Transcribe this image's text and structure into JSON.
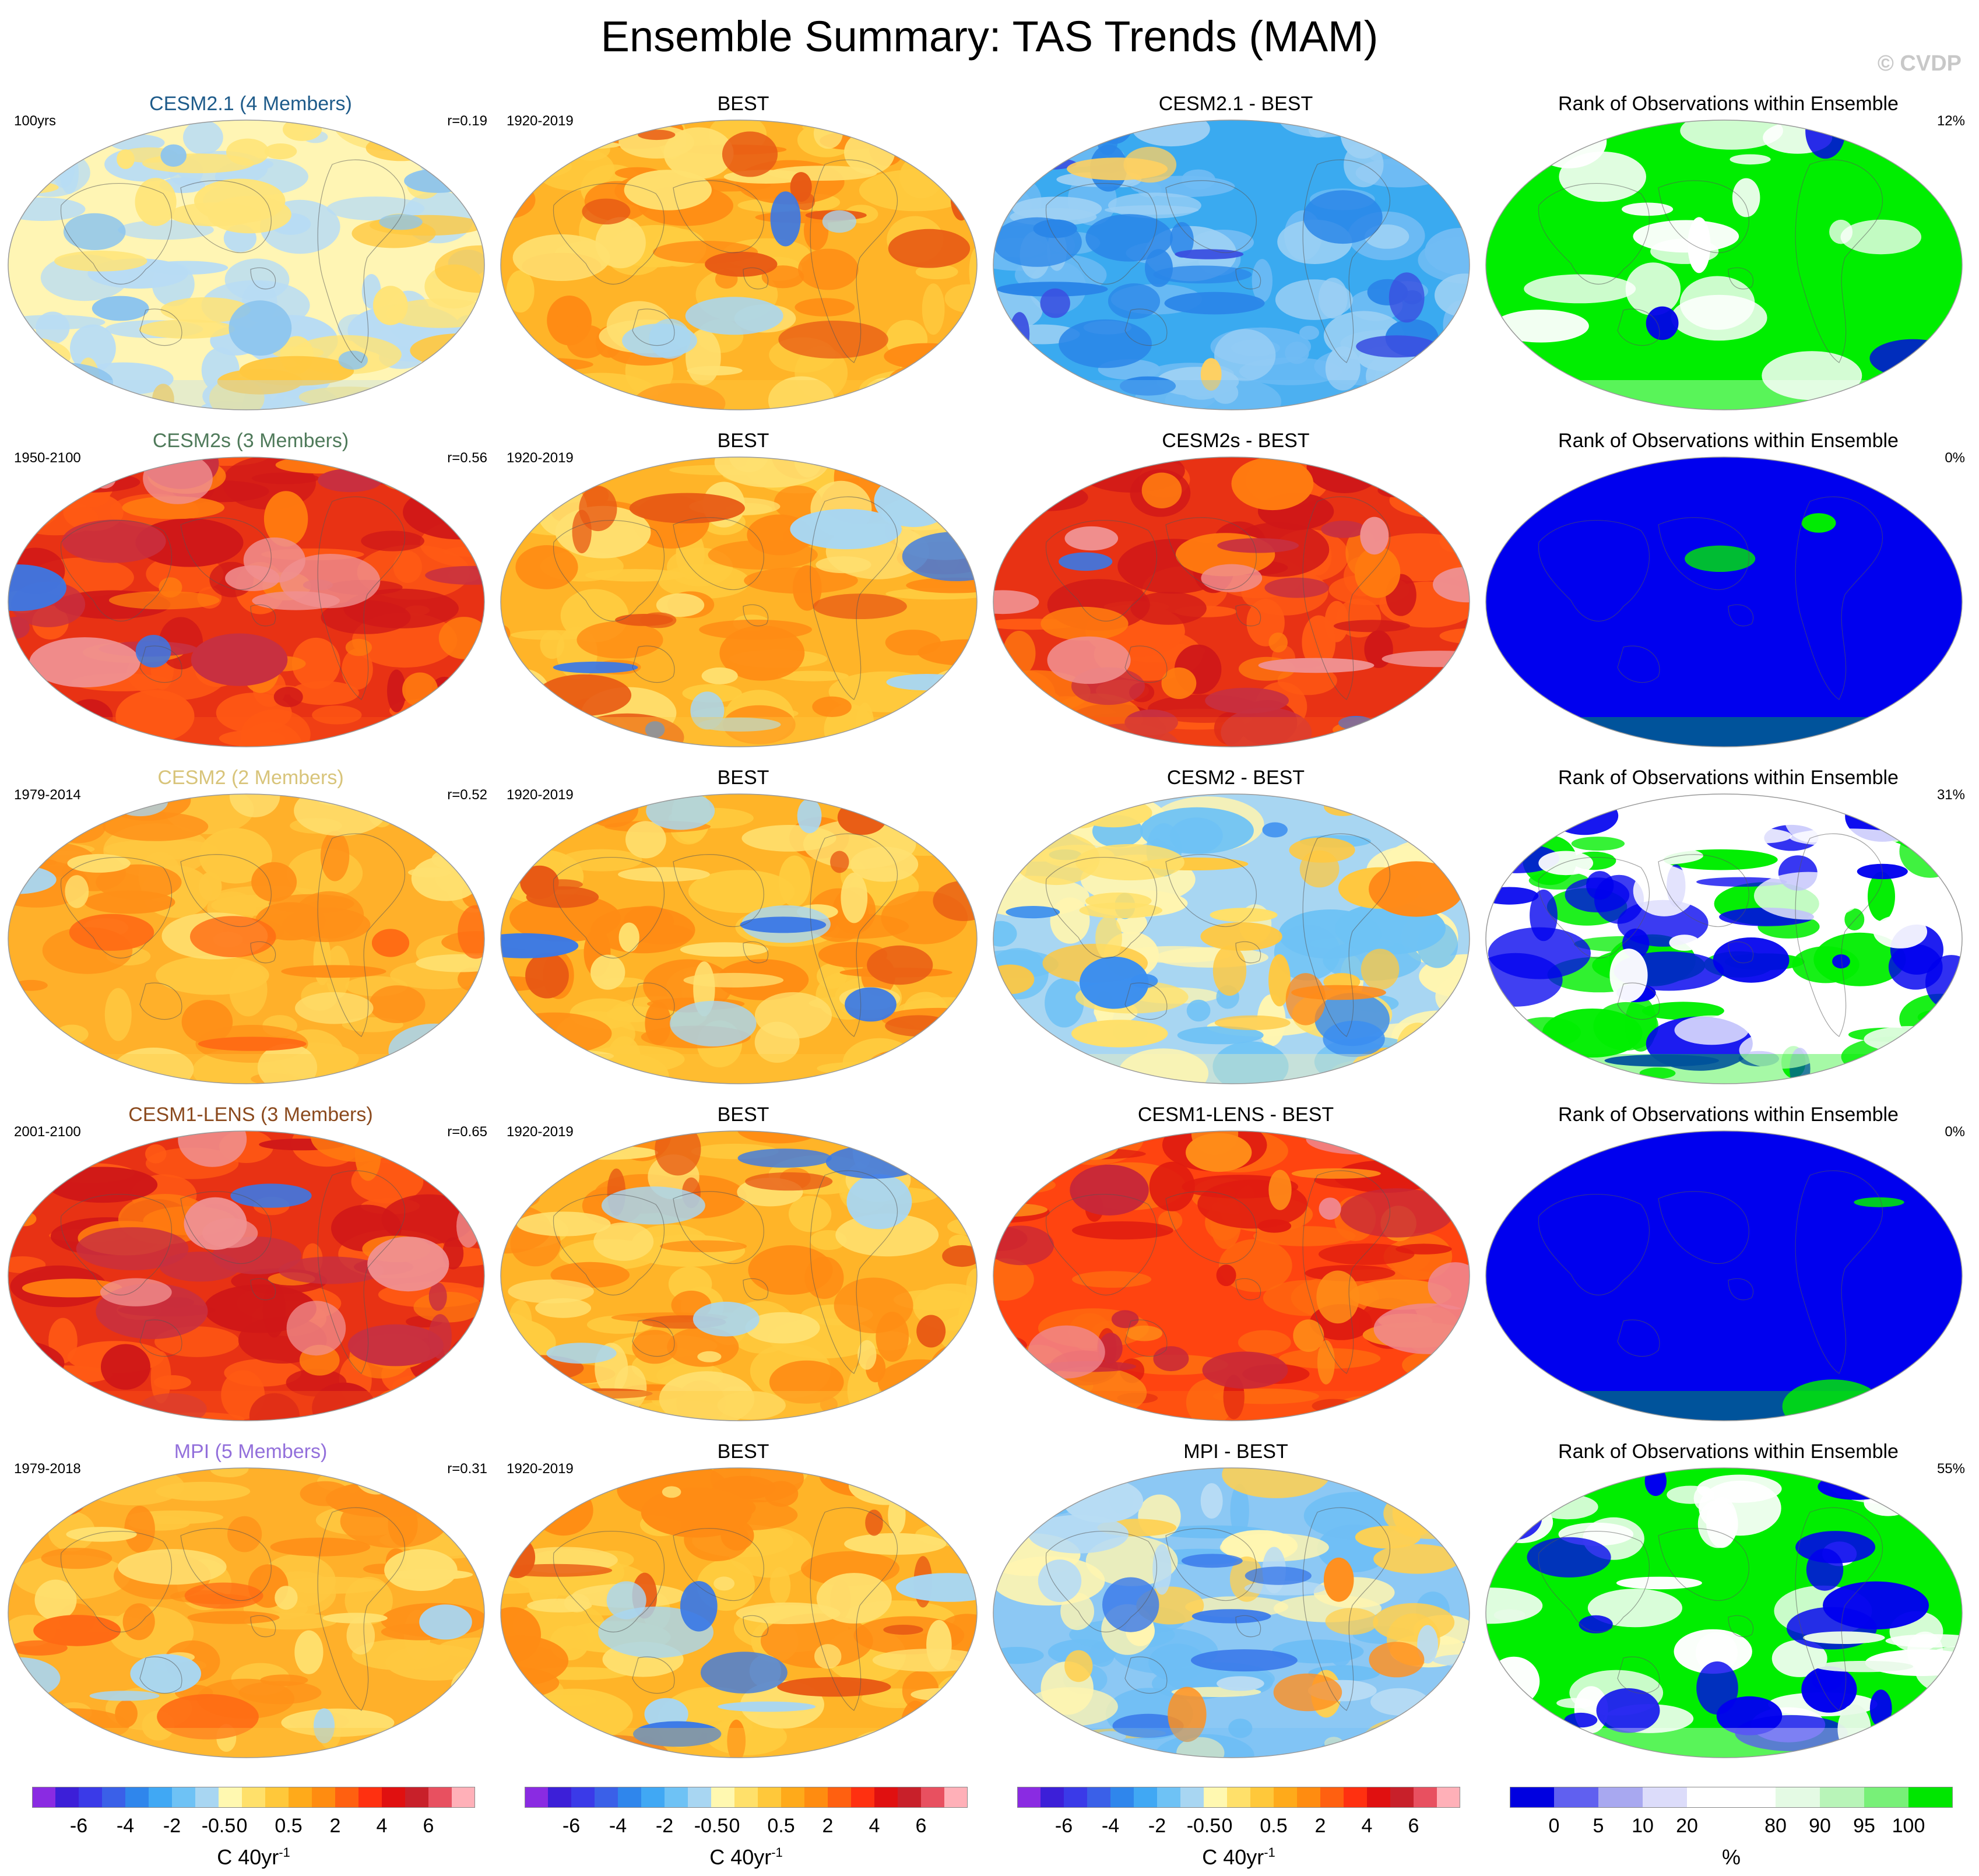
{
  "title": "Ensemble Summary: TAS Trends (MAM)",
  "watermark": "© CVDP",
  "rows": [
    {
      "model": {
        "title": "CESM2.1 (4 Members)",
        "title_color": "#1e5b8a",
        "left": "100yrs",
        "right": "r=0.19",
        "pattern": "mild"
      },
      "obs": {
        "title": "BEST",
        "left": "1920-2019",
        "pattern": "obs"
      },
      "diff": {
        "title": "CESM2.1 - BEST",
        "pattern": "cold"
      },
      "rank": {
        "title": "Rank of Observations within Ensemble",
        "right": "12%",
        "pattern": "rank_green"
      }
    },
    {
      "model": {
        "title": "CESM2s (3 Members)",
        "title_color": "#4f7a5a",
        "left": "1950-2100",
        "right": "r=0.56",
        "pattern": "hot"
      },
      "obs": {
        "title": "BEST",
        "left": "1920-2019",
        "pattern": "obs"
      },
      "diff": {
        "title": "CESM2s - BEST",
        "pattern": "hot"
      },
      "rank": {
        "title": "Rank of Observations within Ensemble",
        "right": "0%",
        "pattern": "rank_blue"
      }
    },
    {
      "model": {
        "title": "CESM2 (2 Members)",
        "title_color": "#d8c47a",
        "left": "1979-2014",
        "right": "r=0.52",
        "pattern": "warm"
      },
      "obs": {
        "title": "BEST",
        "left": "1920-2019",
        "pattern": "obs"
      },
      "diff": {
        "title": "CESM2 - BEST",
        "pattern": "mixed"
      },
      "rank": {
        "title": "Rank of Observations within Ensemble",
        "right": "31%",
        "pattern": "rank_mixed"
      }
    },
    {
      "model": {
        "title": "CESM1-LENS (3 Members)",
        "title_color": "#8b4a1e",
        "left": "2001-2100",
        "right": "r=0.65",
        "pattern": "hot"
      },
      "obs": {
        "title": "BEST",
        "left": "1920-2019",
        "pattern": "obs"
      },
      "diff": {
        "title": "CESM1-LENS - BEST",
        "pattern": "hot2"
      },
      "rank": {
        "title": "Rank of Observations within Ensemble",
        "right": "0%",
        "pattern": "rank_blue"
      }
    },
    {
      "model": {
        "title": "MPI (5 Members)",
        "title_color": "#9370db",
        "left": "1979-2018",
        "right": "r=0.31",
        "pattern": "warm"
      },
      "obs": {
        "title": "BEST",
        "left": "1920-2019",
        "pattern": "obs"
      },
      "diff": {
        "title": "MPI - BEST",
        "pattern": "mixed2"
      },
      "rank": {
        "title": "Rank of Observations within Ensemble",
        "right": "55%",
        "pattern": "rank_mixed2"
      }
    }
  ],
  "colorbars": [
    {
      "labels": [
        "-6",
        "-4",
        "-2",
        "-0.5",
        "0",
        "0.5",
        "2",
        "4",
        "6"
      ],
      "unit": "C 40yr",
      "unit_sup": "-1",
      "colors": [
        "#8a2be2",
        "#3c1fd8",
        "#3a3ae8",
        "#3a60e8",
        "#2f86ec",
        "#40a8f4",
        "#6ec2f5",
        "#a8d6f2",
        "#fff8b0",
        "#ffe06a",
        "#ffc83a",
        "#ffaa1a",
        "#ff8c10",
        "#ff6010",
        "#ff3010",
        "#e01010",
        "#c8202a",
        "#e85060",
        "#ffb0b8"
      ]
    },
    {
      "labels": [
        "-6",
        "-4",
        "-2",
        "-0.5",
        "0",
        "0.5",
        "2",
        "4",
        "6"
      ],
      "unit": "C 40yr",
      "unit_sup": "-1",
      "colors": [
        "#8a2be2",
        "#3c1fd8",
        "#3a3ae8",
        "#3a60e8",
        "#2f86ec",
        "#40a8f4",
        "#6ec2f5",
        "#a8d6f2",
        "#fff8b0",
        "#ffe06a",
        "#ffc83a",
        "#ffaa1a",
        "#ff8c10",
        "#ff6010",
        "#ff3010",
        "#e01010",
        "#c8202a",
        "#e85060",
        "#ffb0b8"
      ]
    },
    {
      "labels": [
        "-6",
        "-4",
        "-2",
        "-0.5",
        "0",
        "0.5",
        "2",
        "4",
        "6"
      ],
      "unit": "C 40yr",
      "unit_sup": "-1",
      "colors": [
        "#8a2be2",
        "#3c1fd8",
        "#3a3ae8",
        "#3a60e8",
        "#2f86ec",
        "#40a8f4",
        "#6ec2f5",
        "#a8d6f2",
        "#fff8b0",
        "#ffe06a",
        "#ffc83a",
        "#ffaa1a",
        "#ff8c10",
        "#ff6010",
        "#ff3010",
        "#e01010",
        "#c8202a",
        "#e85060",
        "#ffb0b8"
      ]
    },
    {
      "labels": [
        "0",
        "5",
        "10",
        "20",
        "80",
        "90",
        "95",
        "100"
      ],
      "unit": "%",
      "unit_sup": "",
      "colors": [
        "#0000e0",
        "#6060f0",
        "#a8a8f0",
        "#dcdcfa",
        "#ffffff",
        "#ffffff",
        "#e4fae4",
        "#b8f4b8",
        "#78f078",
        "#00e600"
      ]
    }
  ]
}
